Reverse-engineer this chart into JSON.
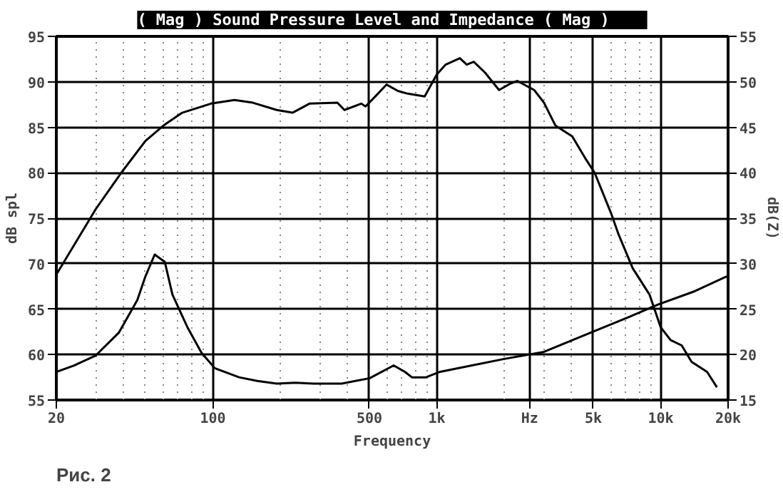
{
  "chart_data": {
    "type": "line",
    "title": "( Mag )   Sound Pressure Level and Impedance   ( Mag )",
    "xlabel": "Frequency",
    "ylabel": "dB spl",
    "y2label": "dB(Z)",
    "annotations": [
      "Рис. 2"
    ],
    "log": "x",
    "grid": true,
    "marker": "none",
    "line_style": "solid",
    "xlim": [
      20,
      20000
    ],
    "xticks": [
      20,
      100,
      500,
      {
        "value": 1000,
        "label": "1k"
      },
      {
        "value": 2600,
        "label": "Hz"
      },
      {
        "value": 5000,
        "label": "5k"
      },
      {
        "value": 10000,
        "label": "10k"
      },
      {
        "value": 20000,
        "label": "20k"
      }
    ],
    "ylim": [
      55,
      95
    ],
    "yticks": [
      55,
      60,
      65,
      70,
      75,
      80,
      85,
      90,
      95
    ],
    "y2lim": [
      15,
      55
    ],
    "y2ticks": [
      15,
      20,
      25,
      30,
      35,
      40,
      45,
      50,
      55
    ],
    "series": [
      {
        "color": "#000000",
        "x": [
          20,
          30,
          39,
          50,
          61,
          73,
          98,
          125,
          151,
          193,
          227,
          270,
          360,
          387,
          460,
          481,
          532,
          597,
          670,
          741,
          883,
          1000,
          1096,
          1268,
          1361,
          1463,
          1644,
          1898,
          2131,
          2290,
          2723,
          3013,
          3385,
          4028,
          4656,
          5071,
          6035,
          6488,
          7498,
          8913,
          10000,
          11070,
          12420,
          13740,
          16110,
          17830
        ],
        "values": [
          68.8,
          76,
          80,
          83.5,
          85.3,
          86.6,
          87.6,
          88,
          87.7,
          86.9,
          86.6,
          87.6,
          87.7,
          86.9,
          87.6,
          87.3,
          88.4,
          89.7,
          89,
          88.7,
          88.4,
          90.8,
          91.9,
          92.6,
          91.9,
          92.2,
          91,
          89.1,
          89.8,
          90.1,
          89.1,
          87.7,
          85.2,
          84,
          81.4,
          80,
          75.4,
          73.2,
          69.5,
          66.6,
          63,
          61.6,
          61,
          59.2,
          58.1,
          56.4
        ]
      },
      {
        "color": "#000000",
        "axis": "y2",
        "x": [
          20,
          24,
          30,
          38,
          46,
          50,
          55,
          61,
          66,
          77,
          89,
          102,
          131,
          158,
          193,
          233,
          282,
          376,
          502,
          642,
          721,
          774,
          895,
          1034,
          1982,
          3013,
          4858,
          7178,
          9727,
          13960,
          19740
        ],
        "values": [
          18.1,
          18.8,
          19.9,
          22.4,
          26,
          28.6,
          31,
          30.2,
          26.6,
          23,
          20.2,
          18.5,
          17.5,
          17.1,
          16.8,
          16.9,
          16.8,
          16.8,
          17.4,
          18.8,
          18.1,
          17.5,
          17.5,
          18.1,
          19.5,
          20.3,
          22.4,
          24.1,
          25.5,
          26.9,
          28.6
        ]
      }
    ]
  }
}
